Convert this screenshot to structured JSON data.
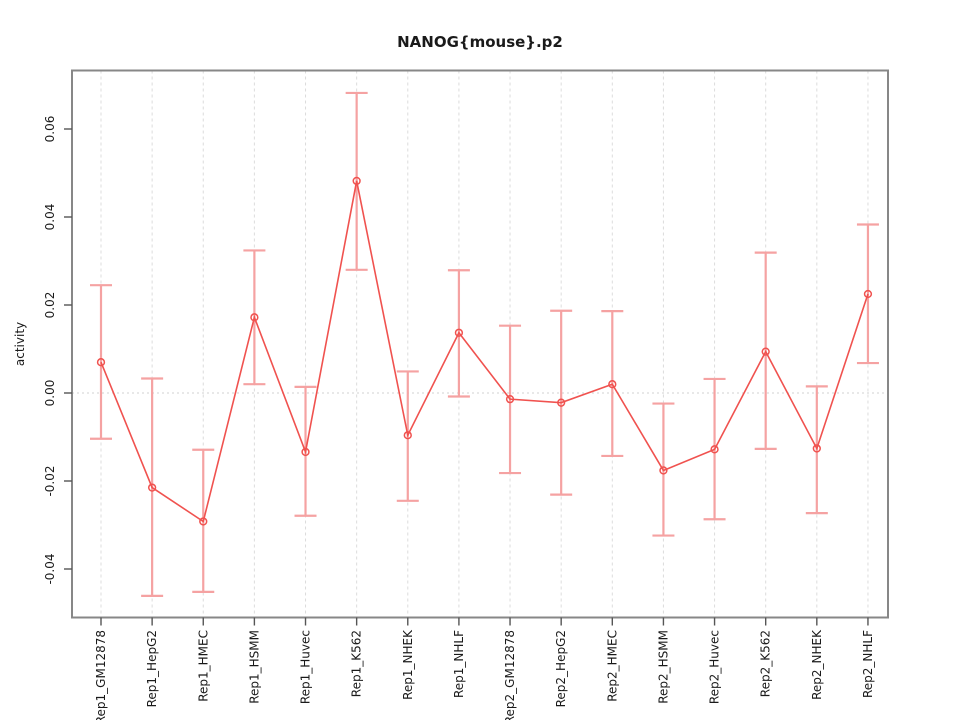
{
  "chart_data": {
    "type": "line",
    "title": "NANOG{mouse}.p2",
    "ylabel": "activity",
    "xlabel": "",
    "legend": "none",
    "grid": "vertical dashed gridline per category plus dotted horizontal zero line",
    "ylim": [
      -0.051,
      0.073
    ],
    "yticks": [
      0.06,
      0.04,
      0.02,
      0.0,
      -0.02,
      -0.04
    ],
    "ytick_labels": [
      "0.06",
      "0.04",
      "0.02",
      "0.00",
      "-0.02",
      "-0.04"
    ],
    "categories": [
      "Rep1_GM12878",
      "Rep1_HepG2",
      "Rep1_HMEC",
      "Rep1_HSMM",
      "Rep1_Huvec",
      "Rep1_K562",
      "Rep1_NHEK",
      "Rep1_NHLF",
      "Rep2_GM12878",
      "Rep2_HepG2",
      "Rep2_HMEC",
      "Rep2_HSMM",
      "Rep2_Huvec",
      "Rep2_K562",
      "Rep2_NHEK",
      "Rep2_NHLF"
    ],
    "series": [
      {
        "name": "activity",
        "values": [
          0.007,
          -0.0215,
          -0.0292,
          0.0172,
          -0.0134,
          0.0482,
          -0.0096,
          0.0137,
          -0.0014,
          -0.0022,
          0.002,
          -0.0176,
          -0.0128,
          0.0094,
          -0.0126,
          0.0225
        ],
        "upper": [
          0.0245,
          0.0033,
          -0.0129,
          0.0324,
          0.0014,
          0.0682,
          0.0049,
          0.0279,
          0.0153,
          0.0187,
          0.0186,
          -0.0024,
          0.0032,
          0.0319,
          0.0015,
          0.0383
        ],
        "lower": [
          -0.0104,
          -0.0461,
          -0.0452,
          0.002,
          -0.0279,
          0.028,
          -0.0245,
          -0.0008,
          -0.0182,
          -0.0231,
          -0.0143,
          -0.0324,
          -0.0287,
          -0.0127,
          -0.0273,
          0.0068
        ]
      }
    ],
    "colors": {
      "line": "#f0524f",
      "point": "#f0524f",
      "error_bar": "#f5a2a2",
      "gridline": "#dcdcdc",
      "zero_line": "#d0d0d0",
      "box": "#878787",
      "tick": "#555555",
      "text": "#1a1a1a"
    }
  }
}
